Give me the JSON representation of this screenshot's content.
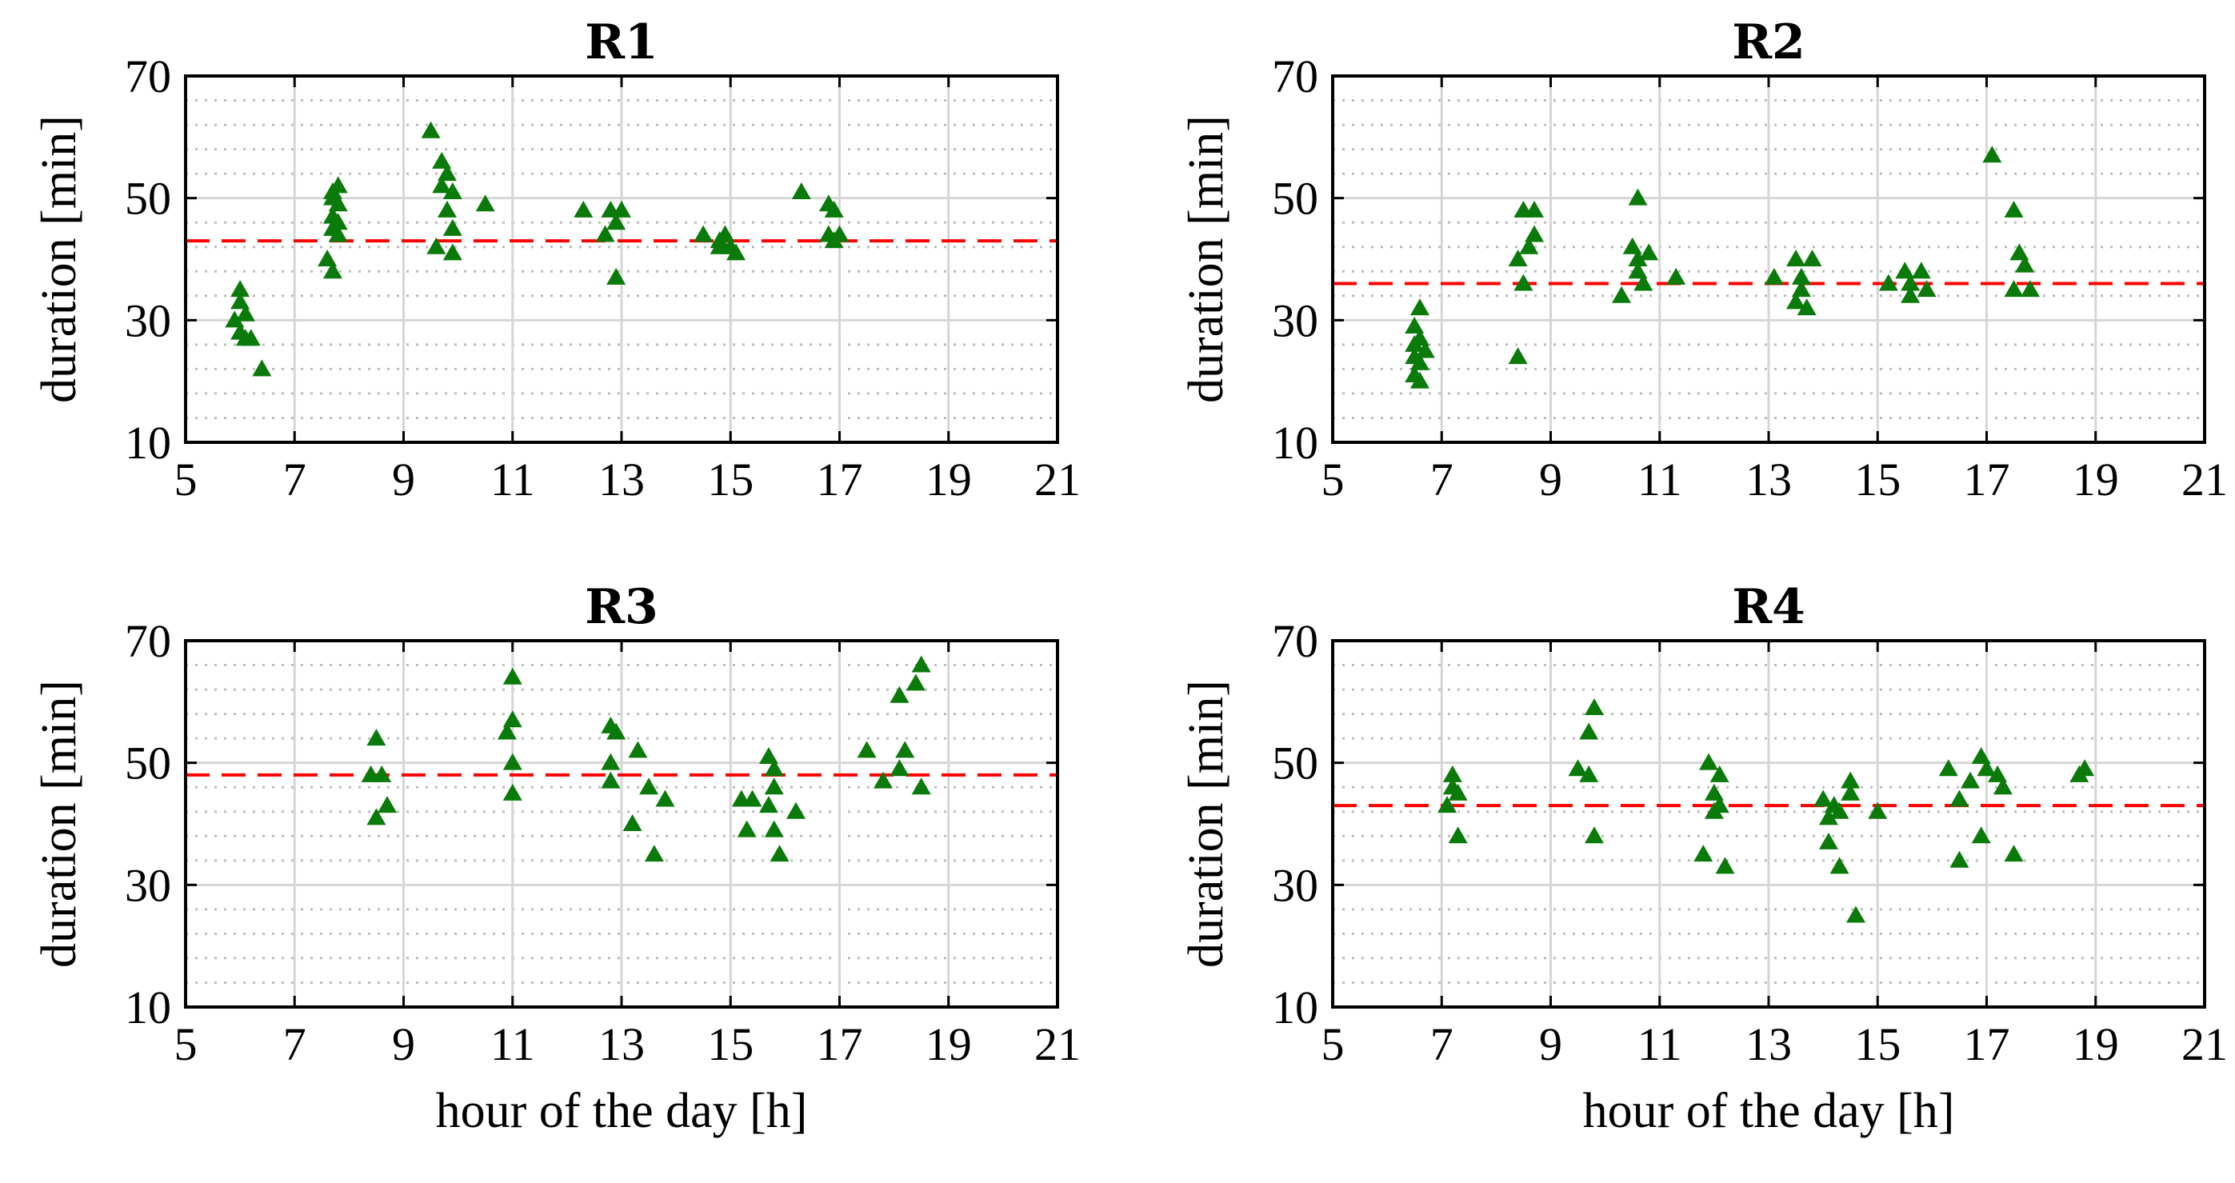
{
  "figure": {
    "xlabel": "hour of the day [h]",
    "ylabel": "duration [min]"
  },
  "colors": {
    "marker": "#0a7a0a",
    "reference_line": "#ff0000",
    "grid_major": "#d6d6d6",
    "grid_minor": "#bdbdbd",
    "axis": "#000000"
  },
  "chart_data": [
    {
      "type": "scatter",
      "title": "R1",
      "xlabel": "",
      "ylabel": "duration [min]",
      "xlim": [
        5,
        21
      ],
      "ylim": [
        10,
        70
      ],
      "xticks": [
        5,
        7,
        9,
        11,
        13,
        15,
        17,
        19,
        21
      ],
      "yticks": [
        10,
        30,
        50,
        70
      ],
      "reference_value": 43,
      "series": [
        {
          "name": "R1",
          "marker": "triangle",
          "points": [
            [
              6.0,
              35
            ],
            [
              6.0,
              33
            ],
            [
              6.1,
              31
            ],
            [
              5.9,
              30
            ],
            [
              6.0,
              28
            ],
            [
              6.1,
              27
            ],
            [
              6.2,
              27
            ],
            [
              6.4,
              22
            ],
            [
              7.7,
              51
            ],
            [
              7.8,
              52
            ],
            [
              7.7,
              50
            ],
            [
              7.8,
              49
            ],
            [
              7.7,
              47
            ],
            [
              7.8,
              46
            ],
            [
              7.7,
              45
            ],
            [
              7.8,
              44
            ],
            [
              7.6,
              40
            ],
            [
              7.7,
              38
            ],
            [
              9.5,
              61
            ],
            [
              9.7,
              56
            ],
            [
              9.8,
              54
            ],
            [
              9.7,
              52
            ],
            [
              9.9,
              51
            ],
            [
              9.8,
              48
            ],
            [
              9.9,
              45
            ],
            [
              9.6,
              42
            ],
            [
              9.9,
              41
            ],
            [
              10.5,
              49
            ],
            [
              12.3,
              48
            ],
            [
              12.8,
              48
            ],
            [
              13.0,
              48
            ],
            [
              12.7,
              44
            ],
            [
              12.9,
              46
            ],
            [
              12.9,
              37
            ],
            [
              14.5,
              44
            ],
            [
              14.8,
              43
            ],
            [
              14.9,
              44
            ],
            [
              15.0,
              42
            ],
            [
              14.8,
              42
            ],
            [
              15.1,
              41
            ],
            [
              16.3,
              51
            ],
            [
              16.8,
              49
            ],
            [
              16.9,
              48
            ],
            [
              16.8,
              44
            ],
            [
              17.0,
              44
            ],
            [
              16.9,
              43
            ]
          ]
        }
      ]
    },
    {
      "type": "scatter",
      "title": "R2",
      "xlabel": "",
      "ylabel": "duration [min]",
      "xlim": [
        5,
        21
      ],
      "ylim": [
        10,
        70
      ],
      "xticks": [
        5,
        7,
        9,
        11,
        13,
        15,
        17,
        19,
        21
      ],
      "yticks": [
        10,
        30,
        50,
        70
      ],
      "reference_value": 36,
      "series": [
        {
          "name": "R2",
          "marker": "triangle",
          "points": [
            [
              6.6,
              32
            ],
            [
              6.5,
              29
            ],
            [
              6.6,
              27
            ],
            [
              6.5,
              26
            ],
            [
              6.7,
              25
            ],
            [
              6.5,
              24
            ],
            [
              6.6,
              23
            ],
            [
              6.5,
              21
            ],
            [
              6.6,
              20
            ],
            [
              8.4,
              24
            ],
            [
              8.5,
              36
            ],
            [
              8.4,
              40
            ],
            [
              8.6,
              42
            ],
            [
              8.7,
              44
            ],
            [
              8.5,
              48
            ],
            [
              8.7,
              48
            ],
            [
              10.6,
              50
            ],
            [
              10.5,
              42
            ],
            [
              10.6,
              40
            ],
            [
              10.8,
              41
            ],
            [
              10.6,
              38
            ],
            [
              10.7,
              36
            ],
            [
              10.3,
              34
            ],
            [
              11.3,
              37
            ],
            [
              13.1,
              37
            ],
            [
              13.5,
              40
            ],
            [
              13.8,
              40
            ],
            [
              13.6,
              37
            ],
            [
              13.6,
              35
            ],
            [
              13.5,
              33
            ],
            [
              13.7,
              32
            ],
            [
              15.2,
              36
            ],
            [
              15.5,
              38
            ],
            [
              15.8,
              38
            ],
            [
              15.6,
              36
            ],
            [
              15.9,
              35
            ],
            [
              15.6,
              34
            ],
            [
              17.1,
              57
            ],
            [
              17.5,
              48
            ],
            [
              17.6,
              41
            ],
            [
              17.7,
              39
            ],
            [
              17.5,
              35
            ],
            [
              17.8,
              35
            ]
          ]
        }
      ]
    },
    {
      "type": "scatter",
      "title": "R3",
      "xlabel": "hour of the day [h]",
      "ylabel": "duration [min]",
      "xlim": [
        5,
        21
      ],
      "ylim": [
        10,
        70
      ],
      "xticks": [
        5,
        7,
        9,
        11,
        13,
        15,
        17,
        19,
        21
      ],
      "yticks": [
        10,
        30,
        50,
        70
      ],
      "reference_value": 48,
      "series": [
        {
          "name": "R3",
          "marker": "triangle",
          "points": [
            [
              8.4,
              48
            ],
            [
              8.5,
              54
            ],
            [
              8.6,
              48
            ],
            [
              8.5,
              41
            ],
            [
              8.7,
              43
            ],
            [
              11.0,
              64
            ],
            [
              10.9,
              55
            ],
            [
              11.0,
              57
            ],
            [
              11.0,
              50
            ],
            [
              11.0,
              45
            ],
            [
              12.8,
              56
            ],
            [
              12.9,
              55
            ],
            [
              12.8,
              50
            ],
            [
              12.8,
              47
            ],
            [
              13.3,
              52
            ],
            [
              13.5,
              46
            ],
            [
              13.8,
              44
            ],
            [
              13.2,
              40
            ],
            [
              13.6,
              35
            ],
            [
              15.2,
              44
            ],
            [
              15.4,
              44
            ],
            [
              15.3,
              39
            ],
            [
              15.7,
              51
            ],
            [
              15.8,
              49
            ],
            [
              15.8,
              46
            ],
            [
              15.7,
              43
            ],
            [
              15.8,
              39
            ],
            [
              16.2,
              42
            ],
            [
              15.9,
              35
            ],
            [
              17.5,
              52
            ],
            [
              17.8,
              47
            ],
            [
              18.2,
              52
            ],
            [
              18.1,
              49
            ],
            [
              18.1,
              61
            ],
            [
              18.4,
              63
            ],
            [
              18.5,
              66
            ],
            [
              18.5,
              46
            ]
          ]
        }
      ]
    },
    {
      "type": "scatter",
      "title": "R4",
      "xlabel": "hour of the day [h]",
      "ylabel": "duration [min]",
      "xlim": [
        5,
        21
      ],
      "ylim": [
        10,
        70
      ],
      "xticks": [
        5,
        7,
        9,
        11,
        13,
        15,
        17,
        19,
        21
      ],
      "yticks": [
        10,
        30,
        50,
        70
      ],
      "reference_value": 43,
      "series": [
        {
          "name": "R4",
          "marker": "triangle",
          "points": [
            [
              7.2,
              48
            ],
            [
              7.2,
              46
            ],
            [
              7.3,
              45
            ],
            [
              7.1,
              43
            ],
            [
              7.3,
              38
            ],
            [
              9.5,
              49
            ],
            [
              9.7,
              48
            ],
            [
              9.7,
              55
            ],
            [
              9.8,
              59
            ],
            [
              9.8,
              38
            ],
            [
              11.9,
              50
            ],
            [
              12.1,
              48
            ],
            [
              12.0,
              45
            ],
            [
              12.1,
              43
            ],
            [
              12.0,
              42
            ],
            [
              11.8,
              35
            ],
            [
              12.2,
              33
            ],
            [
              14.0,
              44
            ],
            [
              14.2,
              43
            ],
            [
              14.1,
              41
            ],
            [
              14.3,
              42
            ],
            [
              14.5,
              47
            ],
            [
              14.5,
              45
            ],
            [
              14.1,
              37
            ],
            [
              14.3,
              33
            ],
            [
              14.6,
              25
            ],
            [
              15.0,
              42
            ],
            [
              16.3,
              49
            ],
            [
              16.7,
              47
            ],
            [
              16.9,
              51
            ],
            [
              17.0,
              49
            ],
            [
              17.2,
              48
            ],
            [
              17.3,
              46
            ],
            [
              16.5,
              44
            ],
            [
              16.9,
              38
            ],
            [
              16.5,
              34
            ],
            [
              17.5,
              35
            ],
            [
              18.7,
              48
            ],
            [
              18.8,
              49
            ]
          ]
        }
      ]
    }
  ]
}
